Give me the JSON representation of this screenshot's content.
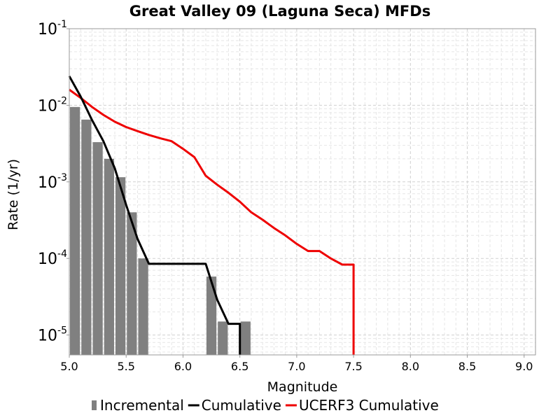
{
  "chart_data": {
    "type": "bar+line",
    "title": "Great Valley 09 (Laguna Seca) MFDs",
    "xlabel": "Magnitude",
    "ylabel": "Rate (1/yr)",
    "xlim": [
      5.0,
      9.1
    ],
    "ylim": [
      5.5e-06,
      0.1
    ],
    "yscale": "log",
    "grid": true,
    "legend_position": "bottom",
    "x_ticks": [
      "5.0",
      "5.5",
      "6.0",
      "6.5",
      "7.0",
      "7.5",
      "8.0",
      "8.5",
      "9.0"
    ],
    "y_ticks": [
      {
        "base": "10",
        "exp": "-5",
        "value": 1e-05
      },
      {
        "base": "10",
        "exp": "-4",
        "value": 0.0001
      },
      {
        "base": "10",
        "exp": "-3",
        "value": 0.001
      },
      {
        "base": "10",
        "exp": "-2",
        "value": 0.01
      },
      {
        "base": "10",
        "exp": "-1",
        "value": 0.1
      }
    ],
    "series": [
      {
        "name": "Incremental",
        "kind": "bar",
        "color": "#808080",
        "bar_width": 0.1,
        "x": [
          5.05,
          5.15,
          5.25,
          5.35,
          5.45,
          5.55,
          5.65,
          6.25,
          6.35,
          6.55
        ],
        "values": [
          0.0095,
          0.0065,
          0.0033,
          0.002,
          0.00115,
          0.0004,
          0.0001,
          5.8e-05,
          1.5e-05,
          1.5e-05
        ]
      },
      {
        "name": "Cumulative",
        "kind": "line",
        "color": "#000000",
        "x": [
          5.0,
          5.1,
          5.2,
          5.3,
          5.4,
          5.5,
          5.6,
          5.7,
          5.8,
          5.9,
          6.0,
          6.1,
          6.2,
          6.3,
          6.4,
          6.5,
          6.5
        ],
        "values": [
          0.024,
          0.013,
          0.0064,
          0.0034,
          0.0015,
          0.0005,
          0.00018,
          8.5e-05,
          8.5e-05,
          8.5e-05,
          8.5e-05,
          8.5e-05,
          8.5e-05,
          2.9e-05,
          1.4e-05,
          1.4e-05,
          5.5e-06
        ]
      },
      {
        "name": "UCERF3 Cumulative",
        "kind": "line",
        "color": "#ee0000",
        "x": [
          5.0,
          5.1,
          5.2,
          5.3,
          5.4,
          5.5,
          5.6,
          5.7,
          5.8,
          5.9,
          6.0,
          6.1,
          6.2,
          6.3,
          6.4,
          6.5,
          6.6,
          6.7,
          6.8,
          6.9,
          7.0,
          7.1,
          7.2,
          7.3,
          7.4,
          7.5,
          7.5
        ],
        "values": [
          0.016,
          0.0125,
          0.0095,
          0.0075,
          0.0061,
          0.0052,
          0.0046,
          0.0041,
          0.0037,
          0.0034,
          0.0027,
          0.0021,
          0.0012,
          0.00092,
          0.00072,
          0.00055,
          0.0004,
          0.00032,
          0.00025,
          0.0002,
          0.000155,
          0.000125,
          0.000125,
          0.0001,
          8.3e-05,
          8.3e-05,
          5.5e-06
        ]
      }
    ]
  }
}
